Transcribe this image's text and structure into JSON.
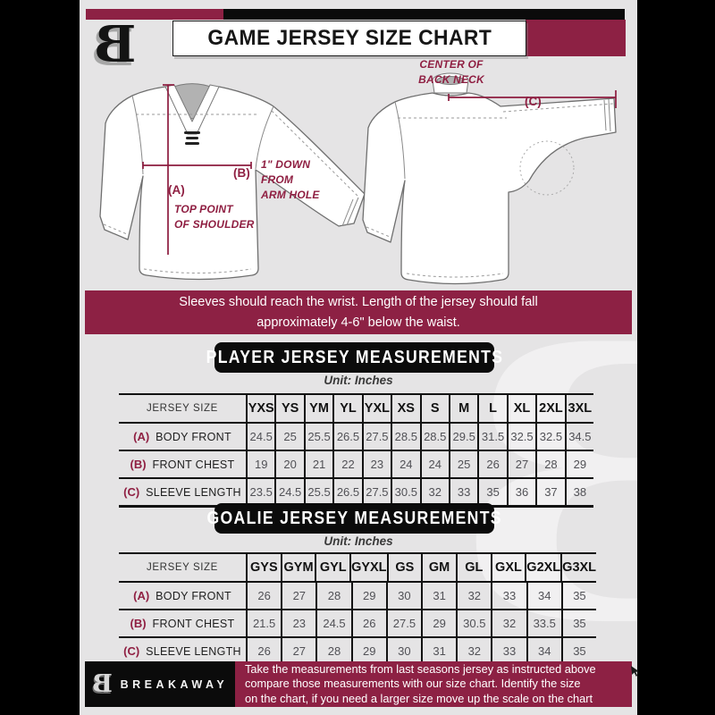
{
  "colors": {
    "maroon": "#8d2144",
    "black": "#0b0b0b",
    "background_gray": "#e5e4e5",
    "annotation_maroon": "#8f1f42"
  },
  "header": {
    "title": "GAME JERSEY SIZE CHART",
    "logo_letter": "B"
  },
  "diagram": {
    "front": {
      "a_key": "(A)",
      "b_key": "(B)",
      "top_point_note": "TOP POINT\nOF SHOULDER",
      "armhole_note": "1\" DOWN\nFROM\nARM HOLE"
    },
    "back": {
      "c_key": "(C)",
      "back_neck_note": "CENTER OF\nBACK NECK"
    }
  },
  "banner": {
    "line1": "Sleeves should reach the wrist. Length of the jersey should fall",
    "line2": "approximately 4-6\" below the waist."
  },
  "player_section": {
    "title": "PLAYER JERSEY MEASUREMENTS",
    "unit": "Unit: Inches",
    "table": {
      "size_header": "JERSEY SIZE",
      "sizes": [
        "YXS",
        "YS",
        "YM",
        "YL",
        "YXL",
        "XS",
        "S",
        "M",
        "L",
        "XL",
        "2XL",
        "3XL"
      ],
      "rows": [
        {
          "key": "(A)",
          "label": "BODY FRONT",
          "values": [
            "24.5",
            "25",
            "25.5",
            "26.5",
            "27.5",
            "28.5",
            "28.5",
            "29.5",
            "31.5",
            "32.5",
            "32.5",
            "34.5"
          ]
        },
        {
          "key": "(B)",
          "label": "FRONT CHEST",
          "values": [
            "19",
            "20",
            "21",
            "22",
            "23",
            "24",
            "24",
            "25",
            "26",
            "27",
            "28",
            "29"
          ]
        },
        {
          "key": "(C)",
          "label": "SLEEVE LENGTH",
          "values": [
            "23.5",
            "24.5",
            "25.5",
            "26.5",
            "27.5",
            "30.5",
            "32",
            "33",
            "35",
            "36",
            "37",
            "38"
          ]
        }
      ]
    }
  },
  "goalie_section": {
    "title": "GOALIE JERSEY MEASUREMENTS",
    "unit": "Unit: Inches",
    "table": {
      "size_header": "JERSEY SIZE",
      "sizes": [
        "GYS",
        "GYM",
        "GYL",
        "GYXL",
        "GS",
        "GM",
        "GL",
        "GXL",
        "G2XL",
        "G3XL"
      ],
      "rows": [
        {
          "key": "(A)",
          "label": "BODY FRONT",
          "values": [
            "26",
            "27",
            "28",
            "29",
            "30",
            "31",
            "32",
            "33",
            "34",
            "35"
          ]
        },
        {
          "key": "(B)",
          "label": "FRONT CHEST",
          "values": [
            "21.5",
            "23",
            "24.5",
            "26",
            "27.5",
            "29",
            "30.5",
            "32",
            "33.5",
            "35"
          ]
        },
        {
          "key": "(C)",
          "label": "SLEEVE LENGTH",
          "values": [
            "26",
            "27",
            "28",
            "29",
            "30",
            "31",
            "32",
            "33",
            "34",
            "35"
          ]
        }
      ]
    }
  },
  "footer": {
    "logo_letter": "B",
    "wordmark": "BREAKAWAY",
    "lines": [
      "Take the measurements from last seasons jersey as instructed above",
      "compare those measurements  with our size chart. Identify the size",
      "on the chart, if you need a larger size move up the scale on the chart"
    ]
  }
}
